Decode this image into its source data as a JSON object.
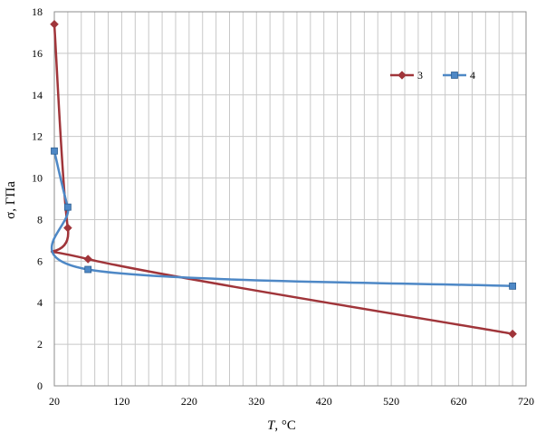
{
  "chart_data": {
    "type": "line",
    "title": "",
    "xlabel_italic": "T",
    "xlabel_rest": ", °C",
    "ylabel": "σ, ГПа",
    "xlim": [
      20,
      720
    ],
    "ylim": [
      0,
      18
    ],
    "x_ticks": [
      "20",
      "120",
      "220",
      "320",
      "420",
      "520",
      "620",
      "720"
    ],
    "y_ticks": [
      "0",
      "2",
      "4",
      "6",
      "8",
      "10",
      "12",
      "14",
      "16",
      "18"
    ],
    "grid": true,
    "legend_position": "top-right",
    "series": [
      {
        "name": "3",
        "color": "#A0353A",
        "marker": "diamond",
        "points": [
          [
            20,
            17.4
          ],
          [
            40,
            7.6
          ],
          [
            70,
            6.1
          ],
          [
            700,
            2.5
          ]
        ]
      },
      {
        "name": "4",
        "color": "#4E88C6",
        "marker": "square",
        "points": [
          [
            20,
            11.3
          ],
          [
            40,
            8.6
          ],
          [
            70,
            5.6
          ],
          [
            700,
            4.8
          ]
        ]
      }
    ]
  }
}
